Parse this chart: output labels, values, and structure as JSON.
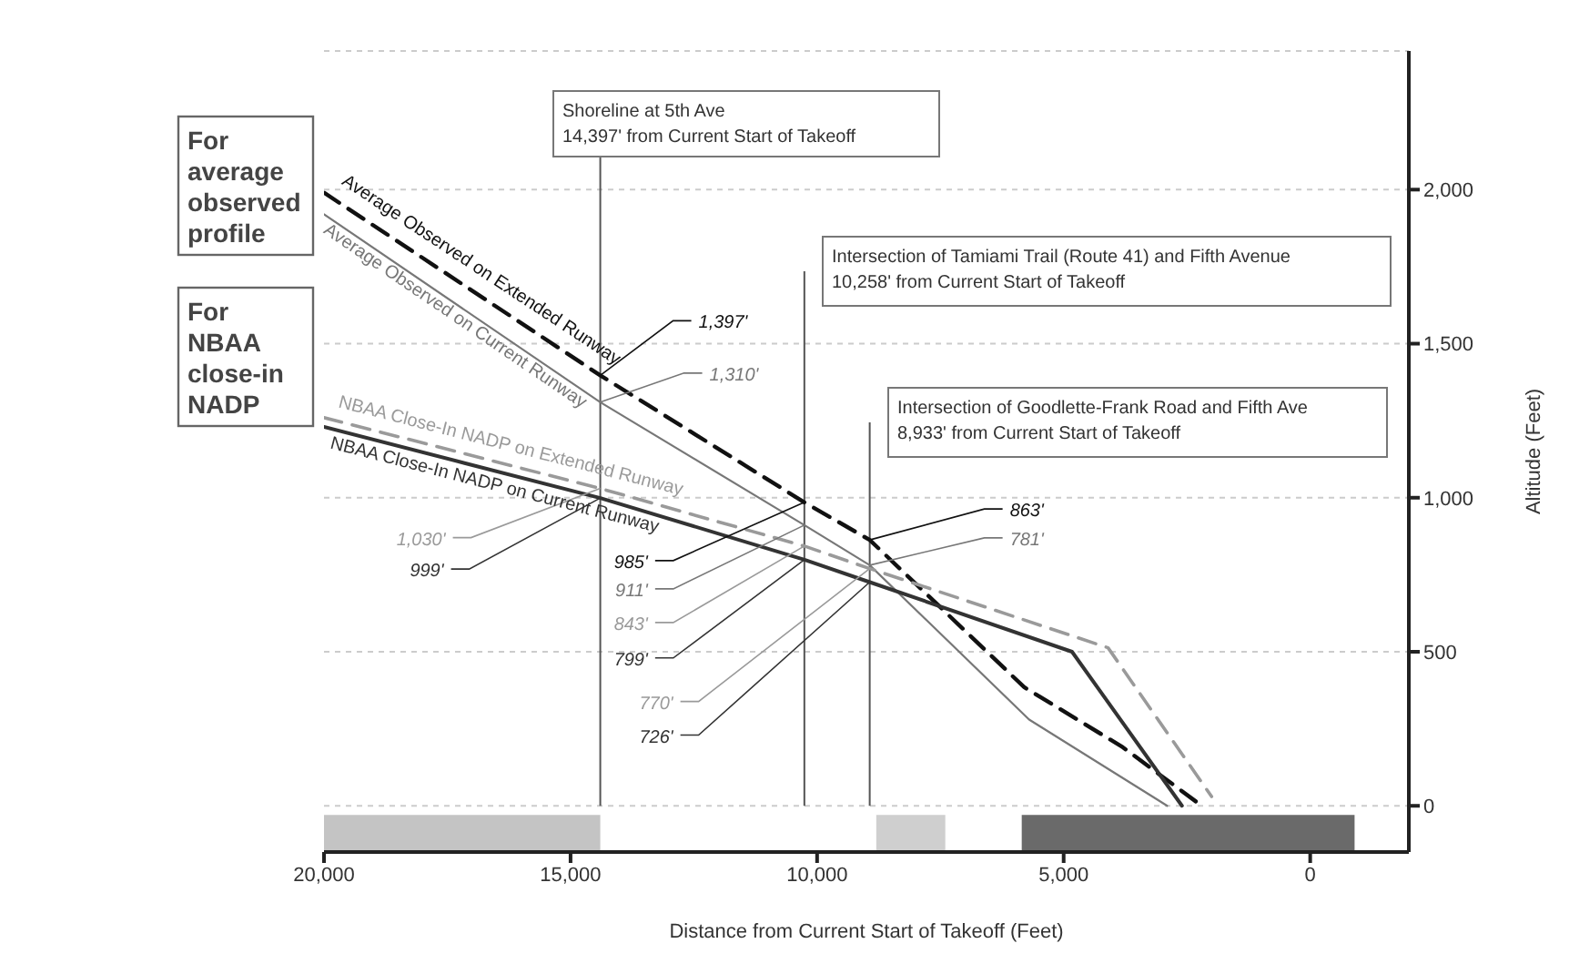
{
  "chart_data": {
    "type": "line",
    "xlabel": "Distance from Current Start of Takeoff (Feet)",
    "ylabel": "Altitude (Feet)",
    "xlim": [
      20000,
      -2000
    ],
    "xticks": [
      {
        "value": 20000,
        "label": "20,000"
      },
      {
        "value": 15000,
        "label": "15,000"
      },
      {
        "value": 10000,
        "label": "10,000"
      },
      {
        "value": 5000,
        "label": "5,000"
      },
      0
    ],
    "ylim": [
      -150,
      2450
    ],
    "yticks": [
      0,
      500,
      {
        "value": 1000,
        "label": "1,000"
      },
      {
        "value": 1500,
        "label": "1,500"
      },
      {
        "value": 2000,
        "label": "2,000"
      }
    ],
    "grid": "y",
    "series": [
      {
        "name": "Average Observed on Extended Runway",
        "color": "#111111",
        "line_style": "dashed",
        "x": [
          20000,
          14397,
          10258,
          8933,
          5800,
          3800,
          2200
        ],
        "values": [
          1990,
          1397,
          985,
          863,
          385,
          190,
          0
        ],
        "value_labels": [
          null,
          "1,397'",
          "985'",
          "863'",
          null,
          null,
          null
        ]
      },
      {
        "name": "Average Observed on Current Runway",
        "color": "#777777",
        "line_style": "solid",
        "x": [
          20000,
          14397,
          10258,
          8933,
          5700,
          2900
        ],
        "values": [
          1920,
          1310,
          911,
          781,
          280,
          0
        ],
        "value_labels": [
          null,
          "1,310'",
          "911'",
          "781'",
          null,
          null
        ]
      },
      {
        "name": "NBAA Close-In NADP on Extended Runway",
        "color": "#9a9a9a",
        "line_style": "dashed",
        "x": [
          20000,
          14397,
          10258,
          8933,
          4100,
          2000
        ],
        "values": [
          1260,
          1030,
          843,
          770,
          513,
          30
        ],
        "value_labels": [
          null,
          "1,030'",
          "843'",
          "770'",
          null,
          null
        ]
      },
      {
        "name": "NBAA Close-In NADP on Current Runway",
        "color": "#333333",
        "line_style": "solid",
        "x": [
          20000,
          14397,
          10258,
          8933,
          4830,
          2600
        ],
        "values": [
          1230,
          999,
          799,
          726,
          500,
          0
        ],
        "value_labels": [
          null,
          "999'",
          "799'",
          "726'",
          null,
          null
        ]
      }
    ],
    "ref_lines": [
      {
        "axis": "x",
        "value": 14397,
        "label": "Shoreline at 5th Ave\n14,397' from Current Start of Takeoff",
        "color": "#555555"
      },
      {
        "axis": "x",
        "value": 10258,
        "label": "Intersection of Tamiami Trail (Route 41) and Fifth Avenue\n10,258' from Current Start of Takeoff",
        "color": "#555555"
      },
      {
        "axis": "x",
        "value": 8933,
        "label": "Intersection of Goodlette-Frank Road and Fifth Ave\n8,933' from Current Start of Takeoff",
        "color": "#555555"
      }
    ],
    "bands": [
      {
        "axis": "x",
        "from": 20000,
        "to": 14397,
        "color": "#c4c4c4"
      },
      {
        "axis": "x",
        "from": 8800,
        "to": 7400,
        "color": "#cfcfcf"
      },
      {
        "axis": "x",
        "from": 5850,
        "to": -900,
        "color": "#6a6a6a"
      }
    ],
    "annotations": [
      "For average observed profile",
      "For NBAA close-in NADP"
    ]
  }
}
